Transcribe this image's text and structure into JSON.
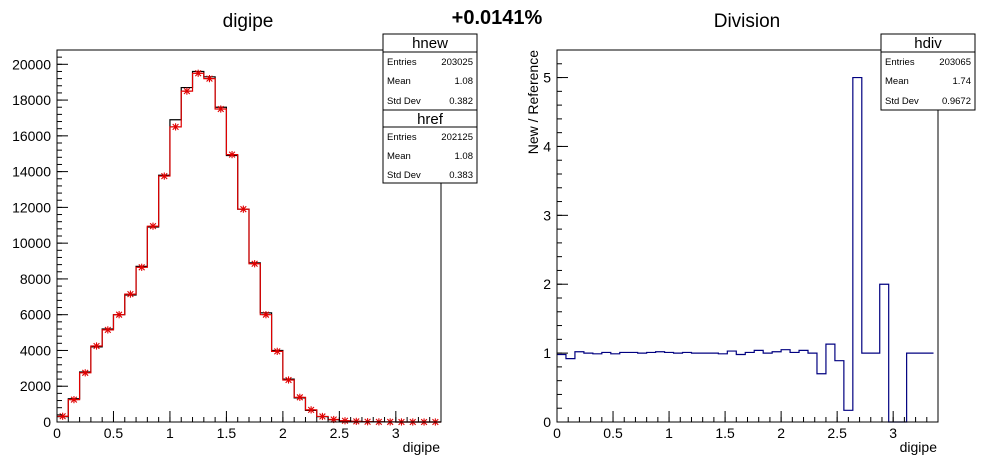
{
  "header": {
    "diff_label": "+0.0141%"
  },
  "colors": {
    "hnew_line": "#000000",
    "href_line": "#e00000",
    "ratio_line": "#000080"
  },
  "left_panel": {
    "title": "digipe",
    "xlabel": "digipe",
    "ylabel": "",
    "stats": [
      {
        "name": "hnew",
        "rows": [
          {
            "key": "Entries",
            "value": "203025"
          },
          {
            "key": "Mean",
            "value": "1.08"
          },
          {
            "key": "Std Dev",
            "value": "0.382"
          }
        ]
      },
      {
        "name": "href",
        "rows": [
          {
            "key": "Entries",
            "value": "202125"
          },
          {
            "key": "Mean",
            "value": "1.08"
          },
          {
            "key": "Std Dev",
            "value": "0.383"
          }
        ]
      }
    ]
  },
  "right_panel": {
    "title": "Division",
    "xlabel": "digipe",
    "ylabel": "New / Reference",
    "stats": [
      {
        "name": "hdiv",
        "rows": [
          {
            "key": "Entries",
            "value": "203065"
          },
          {
            "key": "Mean",
            "value": "1.74"
          },
          {
            "key": "Std Dev",
            "value": "0.9672"
          }
        ]
      }
    ]
  },
  "chart_data": [
    {
      "type": "histogram",
      "title": "digipe",
      "xlabel": "digipe",
      "ylabel": "",
      "xlim": [
        0,
        3.4
      ],
      "ylim": [
        0,
        20800
      ],
      "xticks": [
        0,
        0.5,
        1,
        1.5,
        2,
        2.5,
        3
      ],
      "yticks": [
        0,
        2000,
        4000,
        6000,
        8000,
        10000,
        12000,
        14000,
        16000,
        18000,
        20000
      ],
      "bin_width": 0.1,
      "series": [
        {
          "name": "hnew",
          "style": "step",
          "values": [
            300,
            1300,
            2800,
            4200,
            5200,
            6000,
            7100,
            8700,
            10900,
            13800,
            16900,
            18700,
            19600,
            19300,
            17600,
            14900,
            11900,
            8900,
            6100,
            4000,
            2400,
            1350,
            650,
            300,
            130,
            60,
            30,
            15,
            8,
            4,
            2,
            1,
            1,
            0
          ]
        },
        {
          "name": "href",
          "style": "step-markers",
          "values": [
            320,
            1250,
            2750,
            4250,
            5150,
            6000,
            7150,
            8650,
            10950,
            13750,
            16500,
            18500,
            19500,
            19200,
            17500,
            14950,
            11900,
            8850,
            6000,
            3950,
            2350,
            1380,
            680,
            310,
            140,
            70,
            35,
            15,
            8,
            4,
            2,
            1,
            1,
            0
          ]
        }
      ],
      "legend": "top-right"
    },
    {
      "type": "histogram",
      "title": "Division",
      "xlabel": "digipe",
      "ylabel": "New / Reference",
      "xlim": [
        0,
        3.4
      ],
      "ylim": [
        0,
        5.4
      ],
      "xticks": [
        0,
        0.5,
        1,
        1.5,
        2,
        2.5,
        3
      ],
      "yticks": [
        0,
        1,
        2,
        3,
        4,
        5
      ],
      "bin_width": 0.08,
      "series": [
        {
          "name": "hdiv",
          "style": "step",
          "values": [
            0.98,
            0.92,
            1.02,
            1.0,
            0.99,
            1.01,
            0.99,
            1.01,
            1.01,
            1.0,
            1.01,
            1.02,
            1.01,
            1.0,
            1.01,
            1.0,
            1.0,
            1.0,
            0.99,
            1.03,
            0.98,
            1.01,
            1.04,
            1.0,
            1.02,
            1.05,
            1.01,
            1.04,
            1.0,
            0.7,
            1.13,
            0.89,
            0.17,
            5.0,
            1.0,
            1.0,
            2.0,
            0.0,
            0.0,
            1.0,
            1.0,
            1.0
          ]
        }
      ],
      "legend": "top-right"
    }
  ]
}
